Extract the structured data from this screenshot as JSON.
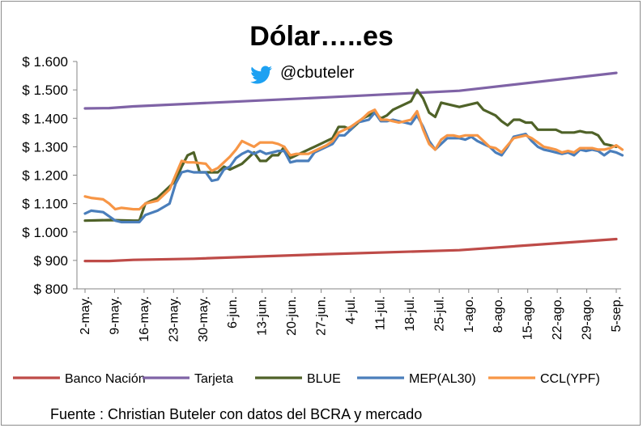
{
  "chart_data": {
    "type": "line",
    "title": "Dólar…..es",
    "subtitle": "@cbuteler",
    "source": "Fuente : Christian Buteler con datos del BCRA y mercado",
    "ylim": [
      800,
      1600
    ],
    "yticks": [
      800,
      900,
      1000,
      1100,
      1200,
      1300,
      1400,
      1500,
      1600
    ],
    "ytick_labels": [
      "$ 800",
      "$ 900",
      "$ 1.000",
      "$ 1.100",
      "$ 1.200",
      "$ 1.300",
      "$ 1.400",
      "$ 1.500",
      "$ 1.600"
    ],
    "x_labels": [
      "2-may.",
      "9-may.",
      "16-may.",
      "23-may.",
      "30-may.",
      "6-jun.",
      "13-jun.",
      "20-jun.",
      "27-jun.",
      "4-jul.",
      "11-jul.",
      "18-jul.",
      "25-jul.",
      "1-ago.",
      "8-ago.",
      "15-ago.",
      "22-ago.",
      "29-ago.",
      "5-sep."
    ],
    "x_count": 89,
    "grid": false,
    "legend_position": "bottom",
    "series": [
      {
        "name": "Banco Nación",
        "color": "#be4b48",
        "values": [
          [
            0,
            898
          ],
          [
            4,
            898
          ],
          [
            8,
            902
          ],
          [
            18,
            906
          ],
          [
            40,
            922
          ],
          [
            62,
            936
          ],
          [
            88,
            975
          ]
        ]
      },
      {
        "name": "Tarjeta",
        "color": "#7f63a6",
        "values": [
          [
            0,
            1435
          ],
          [
            4,
            1436
          ],
          [
            8,
            1442
          ],
          [
            18,
            1452
          ],
          [
            40,
            1474
          ],
          [
            62,
            1497
          ],
          [
            88,
            1560
          ]
        ]
      },
      {
        "name": "BLUE",
        "color": "#4f6228",
        "values": [
          [
            0,
            1040
          ],
          [
            4,
            1042
          ],
          [
            8,
            1040
          ],
          [
            9,
            1040
          ],
          [
            10,
            1100
          ],
          [
            12,
            1120
          ],
          [
            14,
            1160
          ],
          [
            15,
            1180
          ],
          [
            16,
            1230
          ],
          [
            17,
            1270
          ],
          [
            18,
            1280
          ],
          [
            19,
            1210
          ],
          [
            20,
            1210
          ],
          [
            22,
            1210
          ],
          [
            23,
            1230
          ],
          [
            24,
            1220
          ],
          [
            25,
            1230
          ],
          [
            26,
            1240
          ],
          [
            27,
            1260
          ],
          [
            28,
            1280
          ],
          [
            29,
            1250
          ],
          [
            30,
            1250
          ],
          [
            31,
            1270
          ],
          [
            32,
            1270
          ],
          [
            33,
            1300
          ],
          [
            34,
            1260
          ],
          [
            35,
            1270
          ],
          [
            36,
            1280
          ],
          [
            37,
            1290
          ],
          [
            38,
            1300
          ],
          [
            39,
            1310
          ],
          [
            40,
            1320
          ],
          [
            41,
            1330
          ],
          [
            42,
            1370
          ],
          [
            43,
            1370
          ],
          [
            44,
            1360
          ],
          [
            45,
            1380
          ],
          [
            46,
            1400
          ],
          [
            47,
            1410
          ],
          [
            48,
            1420
          ],
          [
            49,
            1400
          ],
          [
            50,
            1410
          ],
          [
            51,
            1430
          ],
          [
            52,
            1440
          ],
          [
            53,
            1450
          ],
          [
            54,
            1460
          ],
          [
            55,
            1500
          ],
          [
            56,
            1470
          ],
          [
            57,
            1420
          ],
          [
            58,
            1405
          ],
          [
            59,
            1455
          ],
          [
            60,
            1450
          ],
          [
            61,
            1445
          ],
          [
            62,
            1440
          ],
          [
            63,
            1445
          ],
          [
            64,
            1450
          ],
          [
            65,
            1455
          ],
          [
            66,
            1430
          ],
          [
            67,
            1420
          ],
          [
            68,
            1410
          ],
          [
            69,
            1390
          ],
          [
            70,
            1375
          ],
          [
            71,
            1395
          ],
          [
            72,
            1395
          ],
          [
            73,
            1385
          ],
          [
            74,
            1385
          ],
          [
            75,
            1360
          ],
          [
            76,
            1360
          ],
          [
            77,
            1360
          ],
          [
            78,
            1360
          ],
          [
            79,
            1350
          ],
          [
            80,
            1350
          ],
          [
            81,
            1350
          ],
          [
            82,
            1355
          ],
          [
            83,
            1350
          ],
          [
            84,
            1350
          ],
          [
            85,
            1340
          ],
          [
            86,
            1310
          ],
          [
            87,
            1305
          ],
          [
            88,
            1300
          ]
        ]
      },
      {
        "name": "MEP(AL30)",
        "color": "#4a7ebb",
        "values": [
          [
            0,
            1065
          ],
          [
            1,
            1075
          ],
          [
            3,
            1070
          ],
          [
            5,
            1040
          ],
          [
            6,
            1035
          ],
          [
            8,
            1035
          ],
          [
            9,
            1035
          ],
          [
            10,
            1060
          ],
          [
            12,
            1075
          ],
          [
            14,
            1100
          ],
          [
            15,
            1170
          ],
          [
            16,
            1210
          ],
          [
            17,
            1215
          ],
          [
            18,
            1210
          ],
          [
            20,
            1210
          ],
          [
            21,
            1180
          ],
          [
            22,
            1185
          ],
          [
            23,
            1220
          ],
          [
            24,
            1230
          ],
          [
            25,
            1260
          ],
          [
            26,
            1275
          ],
          [
            27,
            1285
          ],
          [
            28,
            1275
          ],
          [
            29,
            1285
          ],
          [
            30,
            1275
          ],
          [
            31,
            1280
          ],
          [
            32,
            1285
          ],
          [
            33,
            1285
          ],
          [
            34,
            1245
          ],
          [
            35,
            1250
          ],
          [
            36,
            1250
          ],
          [
            37,
            1250
          ],
          [
            38,
            1280
          ],
          [
            39,
            1290
          ],
          [
            40,
            1300
          ],
          [
            41,
            1310
          ],
          [
            42,
            1340
          ],
          [
            43,
            1340
          ],
          [
            44,
            1360
          ],
          [
            45,
            1385
          ],
          [
            46,
            1390
          ],
          [
            47,
            1395
          ],
          [
            48,
            1420
          ],
          [
            49,
            1390
          ],
          [
            50,
            1390
          ],
          [
            51,
            1395
          ],
          [
            52,
            1390
          ],
          [
            53,
            1385
          ],
          [
            54,
            1380
          ],
          [
            55,
            1410
          ],
          [
            56,
            1370
          ],
          [
            57,
            1320
          ],
          [
            58,
            1290
          ],
          [
            59,
            1310
          ],
          [
            60,
            1330
          ],
          [
            61,
            1330
          ],
          [
            62,
            1330
          ],
          [
            63,
            1325
          ],
          [
            64,
            1335
          ],
          [
            65,
            1320
          ],
          [
            66,
            1310
          ],
          [
            67,
            1300
          ],
          [
            68,
            1280
          ],
          [
            69,
            1270
          ],
          [
            70,
            1300
          ],
          [
            71,
            1335
          ],
          [
            72,
            1340
          ],
          [
            73,
            1345
          ],
          [
            74,
            1320
          ],
          [
            75,
            1300
          ],
          [
            76,
            1290
          ],
          [
            77,
            1285
          ],
          [
            78,
            1280
          ],
          [
            79,
            1275
          ],
          [
            80,
            1280
          ],
          [
            81,
            1270
          ],
          [
            82,
            1290
          ],
          [
            83,
            1285
          ],
          [
            84,
            1290
          ],
          [
            85,
            1285
          ],
          [
            86,
            1270
          ],
          [
            87,
            1285
          ],
          [
            88,
            1280
          ],
          [
            89,
            1270
          ]
        ]
      },
      {
        "name": "CCL(YPF)",
        "color": "#f79646",
        "values": [
          [
            0,
            1125
          ],
          [
            1,
            1120
          ],
          [
            3,
            1115
          ],
          [
            4,
            1100
          ],
          [
            5,
            1080
          ],
          [
            6,
            1085
          ],
          [
            8,
            1080
          ],
          [
            9,
            1080
          ],
          [
            10,
            1100
          ],
          [
            12,
            1110
          ],
          [
            14,
            1150
          ],
          [
            15,
            1200
          ],
          [
            16,
            1250
          ],
          [
            17,
            1245
          ],
          [
            18,
            1245
          ],
          [
            20,
            1240
          ],
          [
            21,
            1215
          ],
          [
            22,
            1225
          ],
          [
            23,
            1245
          ],
          [
            24,
            1265
          ],
          [
            25,
            1290
          ],
          [
            26,
            1320
          ],
          [
            27,
            1310
          ],
          [
            28,
            1300
          ],
          [
            29,
            1315
          ],
          [
            30,
            1315
          ],
          [
            31,
            1315
          ],
          [
            32,
            1310
          ],
          [
            33,
            1300
          ],
          [
            34,
            1270
          ],
          [
            35,
            1275
          ],
          [
            36,
            1275
          ],
          [
            37,
            1275
          ],
          [
            38,
            1285
          ],
          [
            39,
            1295
          ],
          [
            40,
            1305
          ],
          [
            41,
            1320
          ],
          [
            42,
            1350
          ],
          [
            43,
            1360
          ],
          [
            44,
            1370
          ],
          [
            45,
            1385
          ],
          [
            46,
            1400
          ],
          [
            47,
            1420
          ],
          [
            48,
            1430
          ],
          [
            49,
            1395
          ],
          [
            50,
            1395
          ],
          [
            51,
            1390
          ],
          [
            52,
            1385
          ],
          [
            53,
            1390
          ],
          [
            54,
            1395
          ],
          [
            55,
            1425
          ],
          [
            56,
            1360
          ],
          [
            57,
            1310
          ],
          [
            58,
            1290
          ],
          [
            59,
            1325
          ],
          [
            60,
            1340
          ],
          [
            61,
            1340
          ],
          [
            62,
            1335
          ],
          [
            63,
            1340
          ],
          [
            64,
            1340
          ],
          [
            65,
            1340
          ],
          [
            66,
            1320
          ],
          [
            67,
            1300
          ],
          [
            68,
            1295
          ],
          [
            69,
            1280
          ],
          [
            70,
            1305
          ],
          [
            71,
            1330
          ],
          [
            72,
            1335
          ],
          [
            73,
            1340
          ],
          [
            74,
            1330
          ],
          [
            75,
            1315
          ],
          [
            76,
            1300
          ],
          [
            77,
            1295
          ],
          [
            78,
            1290
          ],
          [
            79,
            1280
          ],
          [
            80,
            1285
          ],
          [
            81,
            1280
          ],
          [
            82,
            1295
          ],
          [
            83,
            1295
          ],
          [
            84,
            1295
          ],
          [
            85,
            1290
          ],
          [
            86,
            1290
          ],
          [
            87,
            1295
          ],
          [
            88,
            1305
          ],
          [
            89,
            1290
          ]
        ]
      }
    ]
  }
}
